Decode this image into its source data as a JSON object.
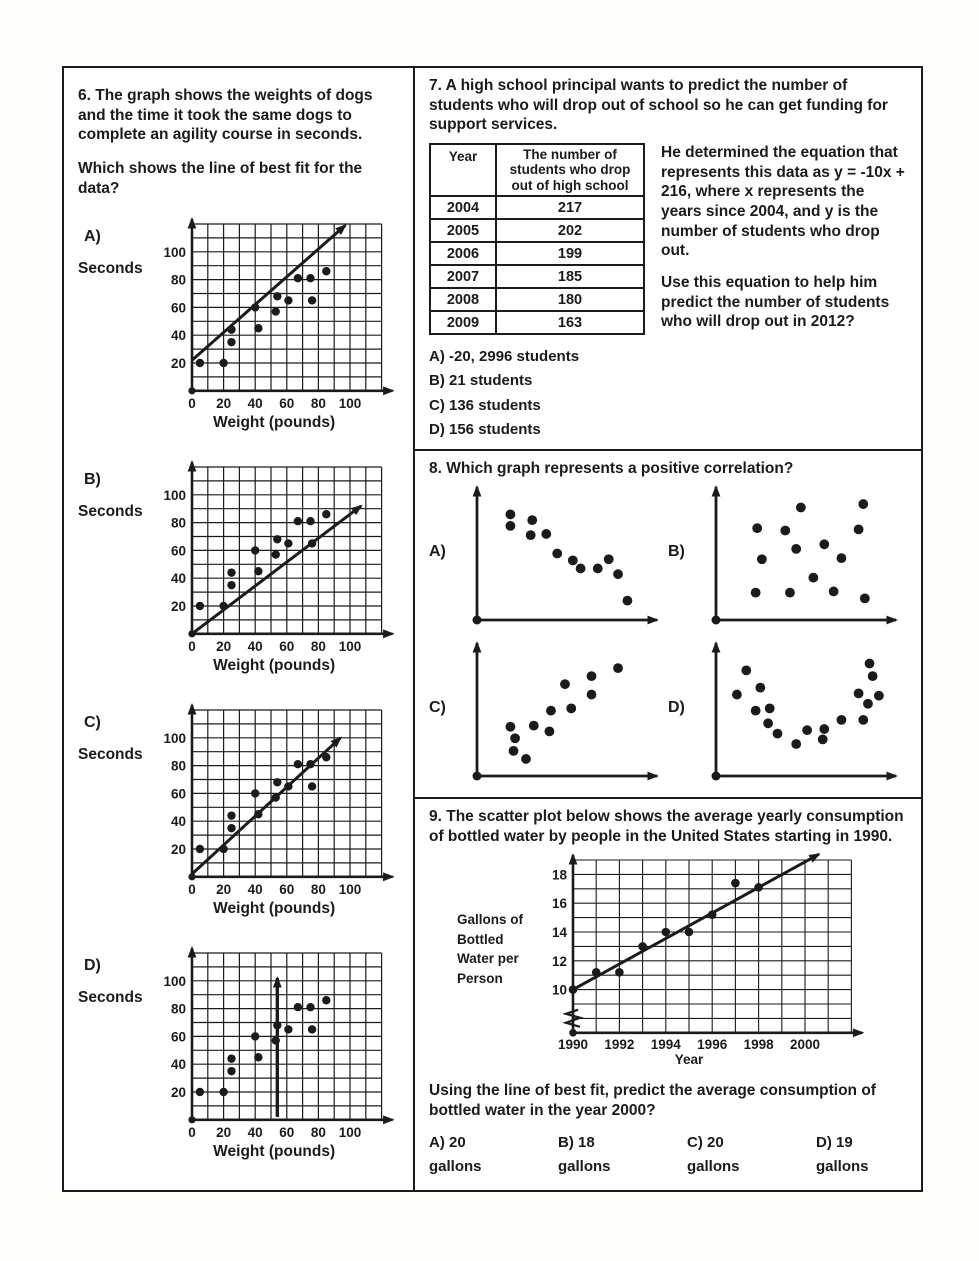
{
  "page": {
    "bg": "#ffffff",
    "ink": "#1b1b1b"
  },
  "q6": {
    "prompt": "6.  The graph shows the weights of dogs and the time it took the same dogs to complete an agility course in seconds.",
    "question": "Which shows the line of best fit for the data?",
    "ylabel": "Seconds",
    "xlabel": "Weight (pounds)",
    "options": [
      {
        "label": "A)"
      },
      {
        "label": "B)"
      },
      {
        "label": "C)"
      },
      {
        "label": "D)"
      }
    ]
  },
  "q7": {
    "prompt": "7.  A high school principal wants to predict the number of students who will drop out of school so he can get funding for support services.",
    "table": {
      "headers": [
        "Year",
        "The number of students who drop out of high school"
      ],
      "rows": [
        [
          "2004",
          "217"
        ],
        [
          "2005",
          "202"
        ],
        [
          "2006",
          "199"
        ],
        [
          "2007",
          "185"
        ],
        [
          "2008",
          "180"
        ],
        [
          "2009",
          "163"
        ]
      ]
    },
    "para1_pre": "He determined the equation that represents this data as  ",
    "equation": "y = -10x + 216",
    "para1_post": ", where x represents the years since 2004, and y is the number of students who drop out.",
    "para2": "Use this equation to help him predict the number of students who will drop out in 2012?",
    "options": [
      "A)  -20, 2996 students",
      "B) 21 students",
      "C)  136 students",
      "D) 156 students"
    ]
  },
  "q8": {
    "prompt": "8.  Which graph represents a positive correlation?",
    "plot_labels": [
      "A)",
      "B)",
      "C)",
      "D)"
    ]
  },
  "q9": {
    "prompt": "9.  The scatter plot below shows the average yearly consumption of bottled water by people in the United States starting in 1990.",
    "question": "Using the line of best fit, predict the average consumption of bottled water in the year 2000?",
    "options": [
      "A) 20 gallons",
      "B) 18 gallons",
      "C) 20 gallons",
      "D)  19 gallons"
    ]
  },
  "chart_data": [
    {
      "id": "q6-dog-agility",
      "type": "scatter",
      "title": "Weights of dogs vs. seconds to complete agility course",
      "xlabel": "Weight (pounds)",
      "ylabel": "Seconds",
      "xlim": [
        0,
        120
      ],
      "ylim": [
        0,
        120
      ],
      "xticks": [
        0,
        20,
        40,
        60,
        80,
        100
      ],
      "yticks": [
        20,
        40,
        60,
        80,
        100
      ],
      "grid": true,
      "points": [
        [
          5,
          20
        ],
        [
          20,
          20
        ],
        [
          25,
          35
        ],
        [
          25,
          44
        ],
        [
          40,
          60
        ],
        [
          42,
          45
        ],
        [
          53,
          57
        ],
        [
          54,
          68
        ],
        [
          61,
          65
        ],
        [
          67,
          81
        ],
        [
          75,
          81
        ],
        [
          76,
          65
        ],
        [
          85,
          86
        ]
      ],
      "fit_options": {
        "A": {
          "type": "segment",
          "from": [
            0,
            22
          ],
          "to": [
            97,
            119
          ]
        },
        "B": {
          "type": "segment",
          "from": [
            0,
            0
          ],
          "to": [
            107,
            92
          ]
        },
        "C": {
          "type": "segment",
          "from": [
            0,
            2
          ],
          "to": [
            94,
            100
          ]
        },
        "D": {
          "type": "vertical",
          "x": 54,
          "from": 2,
          "to": 102
        }
      }
    },
    {
      "id": "q8-A",
      "type": "scatter",
      "trend": "negative",
      "grid": false,
      "points_norm": [
        [
          0.15,
          0.84
        ],
        [
          0.15,
          0.74
        ],
        [
          0.29,
          0.79
        ],
        [
          0.28,
          0.66
        ],
        [
          0.38,
          0.67
        ],
        [
          0.45,
          0.5
        ],
        [
          0.55,
          0.44
        ],
        [
          0.6,
          0.37
        ],
        [
          0.71,
          0.37
        ],
        [
          0.78,
          0.45
        ],
        [
          0.84,
          0.32
        ],
        [
          0.9,
          0.09
        ]
      ]
    },
    {
      "id": "q8-B",
      "type": "scatter",
      "trend": "none",
      "grid": false,
      "points_norm": [
        [
          0.48,
          0.9
        ],
        [
          0.88,
          0.93
        ],
        [
          0.2,
          0.72
        ],
        [
          0.38,
          0.7
        ],
        [
          0.85,
          0.71
        ],
        [
          0.63,
          0.58
        ],
        [
          0.45,
          0.54
        ],
        [
          0.23,
          0.45
        ],
        [
          0.74,
          0.46
        ],
        [
          0.56,
          0.29
        ],
        [
          0.19,
          0.16
        ],
        [
          0.41,
          0.16
        ],
        [
          0.69,
          0.17
        ],
        [
          0.89,
          0.11
        ]
      ]
    },
    {
      "id": "q8-C",
      "type": "scatter",
      "trend": "positive",
      "grid": false,
      "points_norm": [
        [
          0.15,
          0.35
        ],
        [
          0.18,
          0.25
        ],
        [
          0.17,
          0.14
        ],
        [
          0.25,
          0.07
        ],
        [
          0.3,
          0.36
        ],
        [
          0.4,
          0.31
        ],
        [
          0.41,
          0.49
        ],
        [
          0.54,
          0.51
        ],
        [
          0.5,
          0.72
        ],
        [
          0.67,
          0.63
        ],
        [
          0.67,
          0.79
        ],
        [
          0.84,
          0.86
        ]
      ]
    },
    {
      "id": "q8-D",
      "type": "scatter",
      "trend": "nonlinear-u",
      "grid": false,
      "points_norm": [
        [
          0.07,
          0.63
        ],
        [
          0.13,
          0.84
        ],
        [
          0.22,
          0.69
        ],
        [
          0.19,
          0.49
        ],
        [
          0.28,
          0.51
        ],
        [
          0.27,
          0.38
        ],
        [
          0.33,
          0.29
        ],
        [
          0.45,
          0.2
        ],
        [
          0.52,
          0.32
        ],
        [
          0.62,
          0.24
        ],
        [
          0.63,
          0.33
        ],
        [
          0.74,
          0.41
        ],
        [
          0.88,
          0.41
        ],
        [
          0.85,
          0.64
        ],
        [
          0.91,
          0.55
        ],
        [
          0.92,
          0.9
        ],
        [
          0.94,
          0.79
        ],
        [
          0.98,
          0.62
        ]
      ]
    },
    {
      "id": "q9-bottled-water",
      "type": "scatter",
      "title": "Average yearly consumption of bottled water per person since 1990",
      "xlabel": "Year",
      "ylabel": "Gallons of Bottled Water per Person",
      "ylabel_lines": [
        "Gallons of",
        "Bottled",
        "Water per",
        "Person"
      ],
      "xticks": [
        1990,
        1992,
        1994,
        1996,
        1998,
        2000
      ],
      "yticks": [
        10,
        12,
        14,
        16,
        18
      ],
      "xlim": [
        1990,
        2002
      ],
      "ylim": [
        7,
        19
      ],
      "axis_break": true,
      "grid": true,
      "points": [
        [
          1990,
          10
        ],
        [
          1991,
          11.2
        ],
        [
          1992,
          11.2
        ],
        [
          1993,
          13
        ],
        [
          1994,
          14
        ],
        [
          1995,
          14
        ],
        [
          1996,
          15.2
        ],
        [
          1997,
          17.4
        ],
        [
          1998,
          17.1
        ]
      ],
      "trend_line": {
        "from": [
          1990,
          10
        ],
        "to": [
          2000.6,
          19.4
        ]
      }
    }
  ]
}
